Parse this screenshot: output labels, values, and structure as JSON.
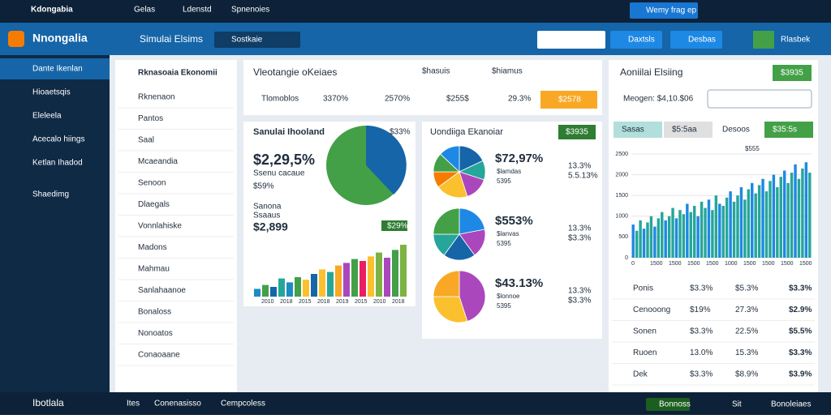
{
  "topbar": {
    "brand": "Kdongabia",
    "tabs": [
      "Gelas",
      "Ldenstd",
      "Spnenoies"
    ],
    "action": "Wemy frag ep"
  },
  "header": {
    "brand": "Nnongalia",
    "title": "Simulai Elsims",
    "dropdown": "Sostkaie",
    "buttons": [
      "Daxtsls",
      "Desbas"
    ],
    "label": "Rlasbek"
  },
  "sidebar": {
    "items": [
      "Dante Ikenlan",
      "Hioaetsqis",
      "Eleleela",
      "Acecalo hiings",
      "Ketlan Ihadod",
      "Shaedimg"
    ]
  },
  "nav": {
    "title": "Rknasoaia Ekonomii",
    "items": [
      "Rknenaon",
      "Pantos",
      "Saal",
      "Mcaeandia",
      "Senoon",
      "Dlaegals",
      "Vonnlahiske",
      "Madons",
      "Mahmau",
      "Sanlahaanoe",
      "Bonaloss",
      "Nonoatos",
      "Conaoaane"
    ]
  },
  "summary": {
    "title": "Vleotangie oKeiaes",
    "headers": [
      "$hasuis",
      "$hiamus"
    ],
    "row": [
      "Tlomoblos",
      "3370%",
      "2570%",
      "$255$",
      "29.3%"
    ],
    "button": "$2578"
  },
  "chart_a": {
    "type": "bar",
    "title": "Sanulai Ihooland",
    "badge_top": "$33%",
    "value": "$2,29,5%",
    "sub": "Ssenu cacaue",
    "note": "$59%",
    "label2": "Sanona",
    "sub2": "Ssaaus",
    "value2": "$2,899",
    "badge": "$29%",
    "categories": [
      "2010",
      "2018",
      "2015",
      "2018",
      "2019",
      "2015",
      "2010",
      "2018"
    ],
    "values": [
      12,
      18,
      15,
      28,
      22,
      30,
      26,
      35,
      42,
      38,
      48,
      52,
      58,
      55,
      62,
      68,
      60,
      72,
      80
    ],
    "colors": [
      "#1e8bc3",
      "#43a047",
      "#1565a8",
      "#26a69a",
      "#1e8bc3",
      "#43a047",
      "#fbc02d",
      "#1565a8",
      "#fbc02d",
      "#26a69a",
      "#f9a825",
      "#ab47bc",
      "#43a047",
      "#e91e63",
      "#fbc02d",
      "#7cb342",
      "#ab47bc",
      "#43a047",
      "#7cb342"
    ],
    "ylim": [
      0,
      100
    ]
  },
  "chart_b": {
    "type": "pie",
    "title": "Uondiiga Ekanoiar",
    "button": "$3935",
    "pies": [
      {
        "value": "$72,97%",
        "sub": "$lamdas",
        "note": "5395",
        "right": "13.3%",
        "right2": "5.5.13%",
        "values": [
          18,
          12,
          15,
          20,
          10,
          12,
          13
        ],
        "colors": [
          "#1565a8",
          "#26a69a",
          "#ab47bc",
          "#fbc02d",
          "#f57c00",
          "#43a047",
          "#1e88e5"
        ]
      },
      {
        "value": "$553%",
        "sub": "$lanvas",
        "note": "5395",
        "right": "13.3%",
        "right2": "$3.3%",
        "values": [
          22,
          18,
          20,
          15,
          25
        ],
        "colors": [
          "#1e88e5",
          "#ab47bc",
          "#1565a8",
          "#26a69a",
          "#43a047"
        ]
      },
      {
        "value": "$43.13%",
        "sub": "$lonnoe",
        "note": "5395",
        "right": "13.3%",
        "right2": "$3.3%",
        "values": [
          45,
          30,
          25
        ],
        "colors": [
          "#ab47bc",
          "#fbc02d",
          "#f9a825"
        ]
      }
    ]
  },
  "chart_c": {
    "type": "bar",
    "title": "Aoniilai Elsiing",
    "button": "$3935",
    "label": "Meogen: $4,10.$06",
    "tabs": [
      "Sasas",
      "$5:5aa",
      "Desoos",
      "$35:5s"
    ],
    "subtitle": "$555",
    "ylim": [
      0,
      2500
    ],
    "yticks": [
      0,
      500,
      1000,
      1500,
      2000,
      2500
    ],
    "categories": [
      "0",
      "1500",
      "1500",
      "1500",
      "1500",
      "1000",
      "1500",
      "1500",
      "1500",
      "1500"
    ],
    "values": [
      800,
      650,
      900,
      700,
      850,
      1000,
      750,
      950,
      1100,
      900,
      1000,
      1200,
      950,
      1150,
      1050,
      1300,
      1100,
      1250,
      1000,
      1350,
      1200,
      1400,
      1150,
      1500,
      1300,
      1250,
      1450,
      1600,
      1350,
      1500,
      1700,
      1400,
      1650,
      1800,
      1550,
      1750,
      1900,
      1600,
      1850,
      2000,
      1700,
      1950,
      2100,
      1800,
      2050,
      2250,
      1900,
      2150,
      2300,
      2050
    ],
    "rows": [
      [
        "Ponis",
        "$3.3%",
        "$5.3%",
        "$3.3%"
      ],
      [
        "Cenooong",
        "$19%",
        "27.3%",
        "$2.9%"
      ],
      [
        "Sonen",
        "$3.3%",
        "22.5%",
        "$5.5%"
      ],
      [
        "Ruoen",
        "13.0%",
        "15.3%",
        "$3.3%"
      ],
      [
        "Dek",
        "$3.3%",
        "$8.9%",
        "$3.9%"
      ]
    ]
  },
  "footer": {
    "brand": "Ibotlala",
    "items": [
      "Ites",
      "Conenasisso",
      "Cempcoless"
    ],
    "right": [
      "Bonnoss",
      "Sit",
      "Bonoleiaes"
    ]
  }
}
